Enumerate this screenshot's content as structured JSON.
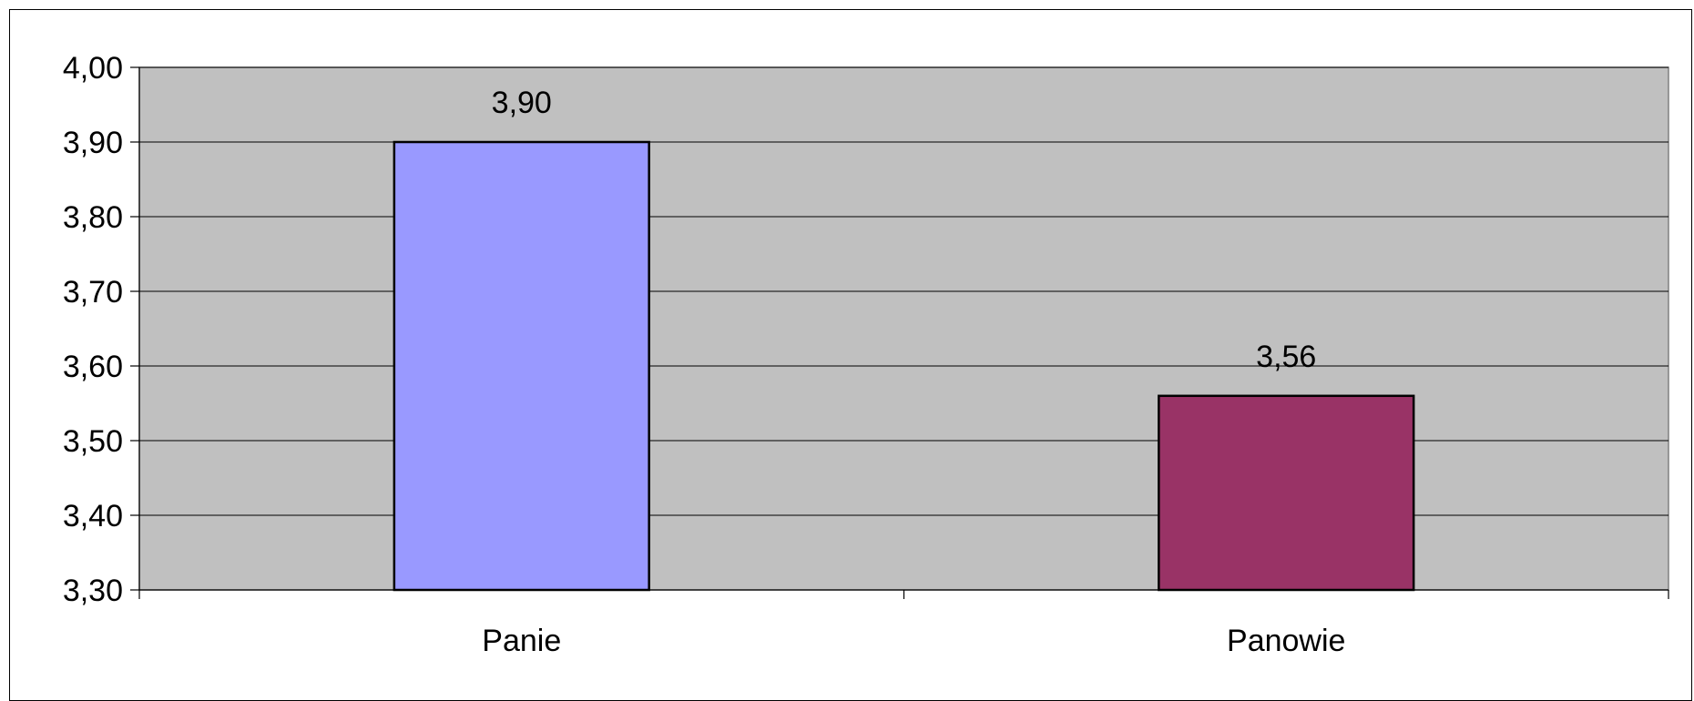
{
  "chart_data": {
    "type": "bar",
    "categories": [
      "Panie",
      "Panowie"
    ],
    "values": [
      3.9,
      3.56
    ],
    "value_labels": [
      "3,90",
      "3,56"
    ],
    "ylim": [
      3.3,
      4.0
    ],
    "y_ticks": [
      3.3,
      3.4,
      3.5,
      3.6,
      3.7,
      3.8,
      3.9,
      4.0
    ],
    "y_tick_labels": [
      "3,30",
      "3,40",
      "3,50",
      "3,60",
      "3,70",
      "3,80",
      "3,90",
      "4,00"
    ],
    "bar_colors": [
      "#9999ff",
      "#993366"
    ],
    "plot_background": "#c0c0c0",
    "gridlines": true,
    "title": "",
    "xlabel": "",
    "ylabel": ""
  }
}
